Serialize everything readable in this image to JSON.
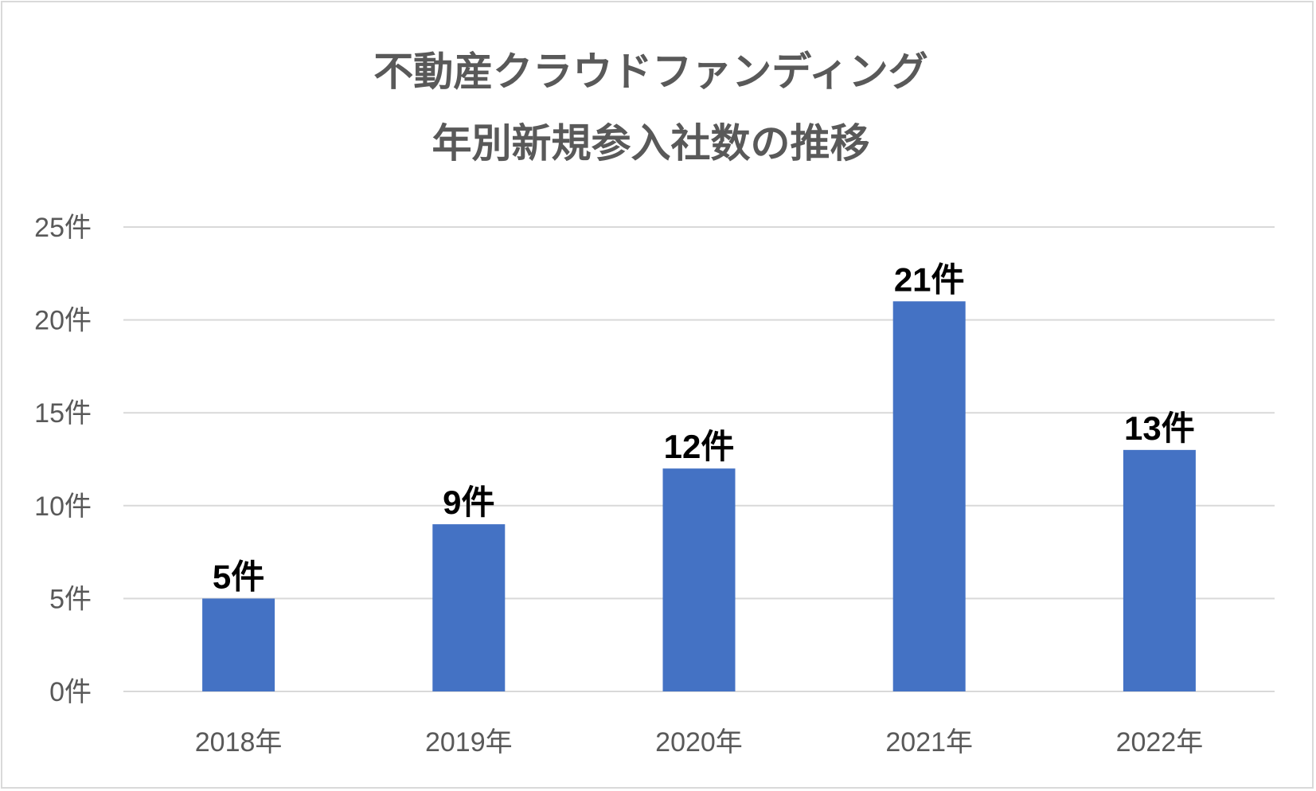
{
  "chart": {
    "title_line1": "不動産クラウドファンディング",
    "title_line2": "年別新規参入社数の推移"
  },
  "chart_data": {
    "type": "bar",
    "title": "不動産クラウドファンディング 年別新規参入社数の推移",
    "categories": [
      "2018年",
      "2019年",
      "2020年",
      "2021年",
      "2022年"
    ],
    "values": [
      5,
      9,
      12,
      21,
      13
    ],
    "data_labels": [
      "5件",
      "9件",
      "12件",
      "21件",
      "13件"
    ],
    "ylim": [
      0,
      25
    ],
    "yticks": [
      0,
      5,
      10,
      15,
      20,
      25
    ],
    "ytick_labels": [
      "0件",
      "5件",
      "10件",
      "15件",
      "20件",
      "25件"
    ],
    "grid": true,
    "legend": "none",
    "bar_color": "#4472c4",
    "grid_color": "#d9d9d9"
  }
}
